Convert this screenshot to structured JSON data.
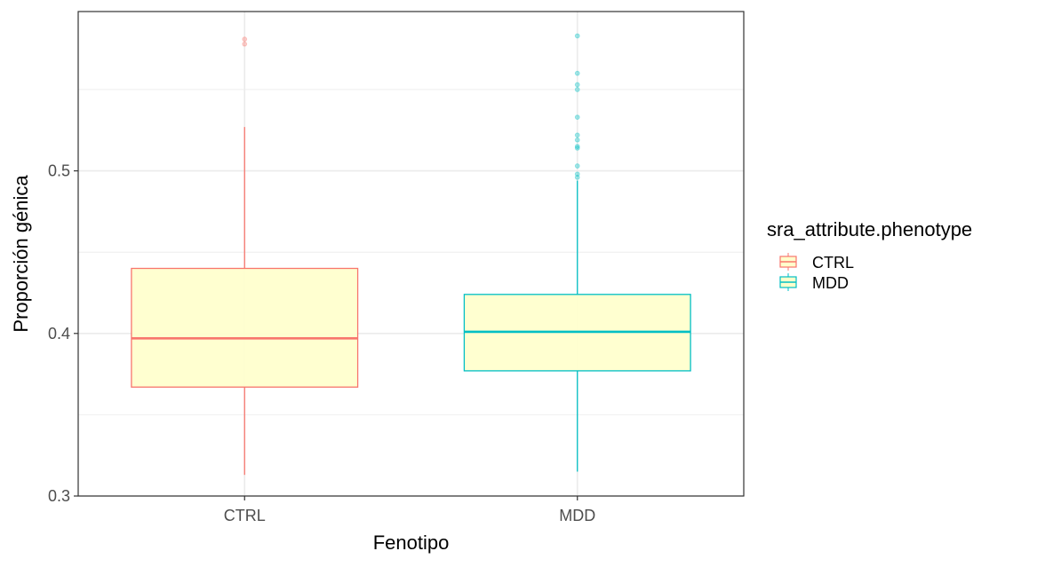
{
  "chart_data": {
    "type": "boxplot",
    "title": "",
    "xlabel": "Fenotipo",
    "ylabel": "Proporción génica",
    "ylim": [
      0.3,
      0.598
    ],
    "yticks": [
      0.3,
      0.4,
      0.5
    ],
    "ytick_labels": [
      "0.3",
      "0.4",
      "0.5"
    ],
    "categories": [
      "CTRL",
      "MDD"
    ],
    "box_fill": "#FFFFCC",
    "grid": true,
    "legend": {
      "title": "sra_attribute.phenotype",
      "position": "right",
      "entries": [
        "CTRL",
        "MDD"
      ]
    },
    "series": [
      {
        "name": "CTRL",
        "color": "#F8766D",
        "whisker_low": 0.313,
        "q1": 0.367,
        "median": 0.397,
        "q3": 0.44,
        "whisker_high": 0.527,
        "outliers": [
          0.578,
          0.581
        ]
      },
      {
        "name": "MDD",
        "color": "#00BFC4",
        "whisker_low": 0.315,
        "q1": 0.377,
        "median": 0.401,
        "q3": 0.424,
        "whisker_high": 0.494,
        "outliers": [
          0.496,
          0.498,
          0.503,
          0.514,
          0.515,
          0.519,
          0.522,
          0.533,
          0.55,
          0.553,
          0.56,
          0.583
        ]
      }
    ]
  }
}
